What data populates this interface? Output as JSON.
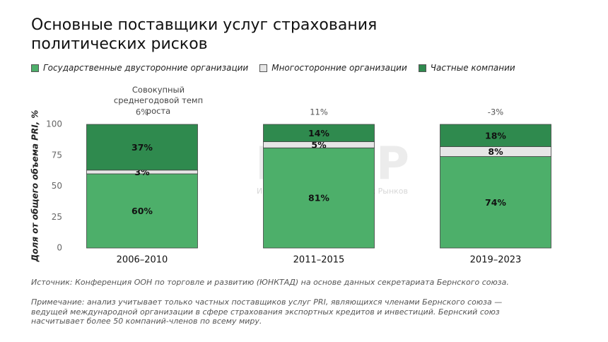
{
  "chart_data": {
    "type": "stacked-bar",
    "title": "Основные поставщики услуг страхования политических рисков",
    "y_label": "Доля от общего объема PRI, %",
    "categories": [
      "2006–2010",
      "2011–2015",
      "2019–2023"
    ],
    "series": [
      {
        "name": "Государственные двусторонние организации",
        "color": "#4daf6a",
        "values": [
          60,
          81,
          74
        ],
        "value_labels": [
          "60%",
          "81%",
          "74%"
        ]
      },
      {
        "name": "Многосторонние организации",
        "color": "#e6e6e6",
        "values": [
          3,
          5,
          8
        ],
        "value_labels": [
          "3%",
          "5%",
          "8%"
        ]
      },
      {
        "name": "Частные компании",
        "color": "#2f8a4e",
        "values": [
          37,
          14,
          18
        ],
        "value_labels": [
          "37%",
          "14%",
          "18%"
        ]
      }
    ],
    "ylim": [
      0,
      100
    ],
    "yticks": [
      0,
      25,
      50,
      75,
      100
    ],
    "grid": false,
    "growth_label": "Совокупный среднегодовой темп роста",
    "growth_rates": [
      "6%",
      "11%",
      "-3%"
    ],
    "watermark": "ИИМР",
    "watermark_subtitle": "Институт Изучения Мировых Рынков",
    "source": "Источник: Конференция ООН по торговле и развитию (ЮНКТАД) на основе данных секретариата Бернского союза.",
    "note": "Примечание: анализ учитывает только частных поставщиков услуг PRI, являющихся членами Бернского союза — ведущей международной организации в сфере страхования экспортных кредитов и инвестиций. Бернский союз насчитывает более 50 компаний-членов по всему миру."
  }
}
